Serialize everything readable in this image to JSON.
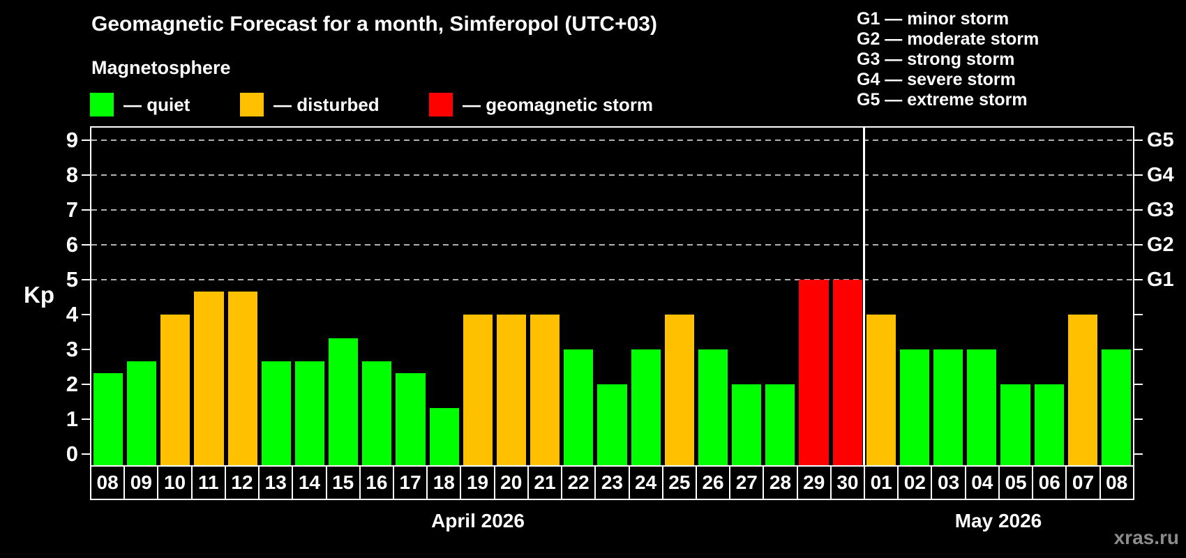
{
  "title": "Geomagnetic Forecast for a month, Simferopol (UTC+03)",
  "subtitle": "Magnetosphere",
  "legend": [
    {
      "key": "quiet",
      "label": "— quiet",
      "color": "#00ff00"
    },
    {
      "key": "disturbed",
      "label": "— disturbed",
      "color": "#ffc000"
    },
    {
      "key": "storm",
      "label": "— geomagnetic storm",
      "color": "#ff0000"
    }
  ],
  "g_scale_legend": [
    "G1 — minor storm",
    "G2 — moderate storm",
    "G3 — strong storm",
    "G4 — severe storm",
    "G5 — extreme storm"
  ],
  "watermark": "xras.ru",
  "chart_data": {
    "type": "bar",
    "ylabel": "Kp",
    "ylim": [
      0,
      9
    ],
    "yticks": [
      0,
      1,
      2,
      3,
      4,
      5,
      6,
      7,
      8,
      9
    ],
    "grid_levels": [
      5,
      6,
      7,
      8,
      9
    ],
    "grid_style": "dashed",
    "legend_position": "top",
    "right_axis": [
      {
        "kp": 5,
        "label": "G1"
      },
      {
        "kp": 6,
        "label": "G2"
      },
      {
        "kp": 7,
        "label": "G3"
      },
      {
        "kp": 8,
        "label": "G4"
      },
      {
        "kp": 9,
        "label": "G5"
      }
    ],
    "level_colors": {
      "quiet": "#00ff00",
      "disturbed": "#ffc000",
      "storm": "#ff0000"
    },
    "months": [
      {
        "label": "April 2026",
        "start_index": 0,
        "count": 23
      },
      {
        "label": "May 2026",
        "start_index": 23,
        "count": 8
      }
    ],
    "days": [
      {
        "date": "08",
        "kp": 2.33,
        "level": "quiet"
      },
      {
        "date": "09",
        "kp": 2.67,
        "level": "quiet"
      },
      {
        "date": "10",
        "kp": 4.0,
        "level": "disturbed"
      },
      {
        "date": "11",
        "kp": 4.67,
        "level": "disturbed"
      },
      {
        "date": "12",
        "kp": 4.67,
        "level": "disturbed"
      },
      {
        "date": "13",
        "kp": 2.67,
        "level": "quiet"
      },
      {
        "date": "14",
        "kp": 2.67,
        "level": "quiet"
      },
      {
        "date": "15",
        "kp": 3.33,
        "level": "quiet"
      },
      {
        "date": "16",
        "kp": 2.67,
        "level": "quiet"
      },
      {
        "date": "17",
        "kp": 2.33,
        "level": "quiet"
      },
      {
        "date": "18",
        "kp": 1.33,
        "level": "quiet"
      },
      {
        "date": "19",
        "kp": 4.0,
        "level": "disturbed"
      },
      {
        "date": "20",
        "kp": 4.0,
        "level": "disturbed"
      },
      {
        "date": "21",
        "kp": 4.0,
        "level": "disturbed"
      },
      {
        "date": "22",
        "kp": 3.0,
        "level": "quiet"
      },
      {
        "date": "23",
        "kp": 2.0,
        "level": "quiet"
      },
      {
        "date": "24",
        "kp": 3.0,
        "level": "quiet"
      },
      {
        "date": "25",
        "kp": 4.0,
        "level": "disturbed"
      },
      {
        "date": "26",
        "kp": 3.0,
        "level": "quiet"
      },
      {
        "date": "27",
        "kp": 2.0,
        "level": "quiet"
      },
      {
        "date": "28",
        "kp": 2.0,
        "level": "quiet"
      },
      {
        "date": "29",
        "kp": 5.0,
        "level": "storm"
      },
      {
        "date": "30",
        "kp": 5.0,
        "level": "storm"
      },
      {
        "date": "01",
        "kp": 4.0,
        "level": "disturbed"
      },
      {
        "date": "02",
        "kp": 3.0,
        "level": "quiet"
      },
      {
        "date": "03",
        "kp": 3.0,
        "level": "quiet"
      },
      {
        "date": "04",
        "kp": 3.0,
        "level": "quiet"
      },
      {
        "date": "05",
        "kp": 2.0,
        "level": "quiet"
      },
      {
        "date": "06",
        "kp": 2.0,
        "level": "quiet"
      },
      {
        "date": "07",
        "kp": 4.0,
        "level": "disturbed"
      },
      {
        "date": "08",
        "kp": 3.0,
        "level": "quiet"
      }
    ]
  }
}
